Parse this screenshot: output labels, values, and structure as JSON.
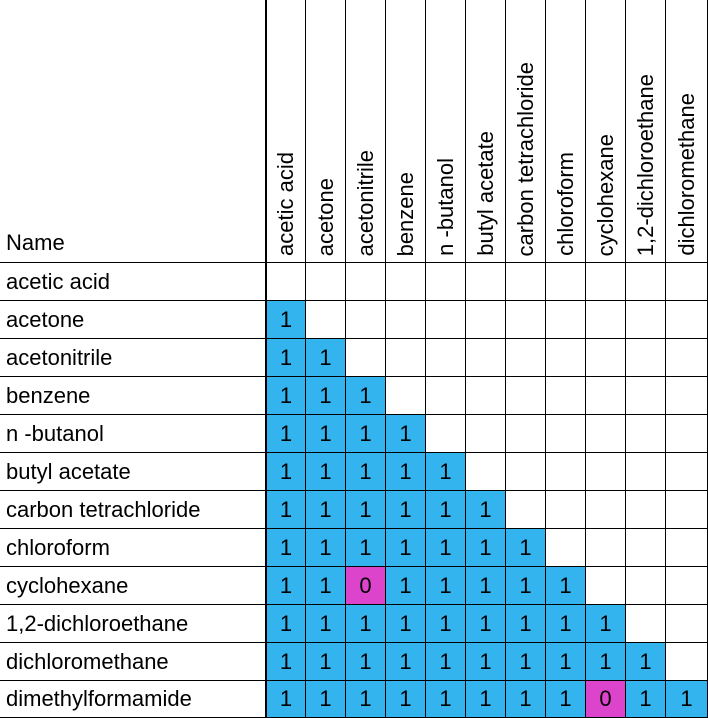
{
  "name_header": "Name",
  "columns": [
    "acetic acid",
    "acetone",
    "acetonitrile",
    "benzene",
    "n -butanol",
    "butyl acetate",
    "carbon tetrachloride",
    "chloroform",
    "cyclohexane",
    "1,2-dichloroethane",
    "dichloromethane"
  ],
  "rows": [
    {
      "name": "acetic acid",
      "values": []
    },
    {
      "name": "acetone",
      "values": [
        "1"
      ]
    },
    {
      "name": "acetonitrile",
      "values": [
        "1",
        "1"
      ]
    },
    {
      "name": "benzene",
      "values": [
        "1",
        "1",
        "1"
      ]
    },
    {
      "name": "n -butanol",
      "values": [
        "1",
        "1",
        "1",
        "1"
      ]
    },
    {
      "name": "butyl acetate",
      "values": [
        "1",
        "1",
        "1",
        "1",
        "1"
      ]
    },
    {
      "name": "carbon tetrachloride",
      "values": [
        "1",
        "1",
        "1",
        "1",
        "1",
        "1"
      ]
    },
    {
      "name": "chloroform",
      "values": [
        "1",
        "1",
        "1",
        "1",
        "1",
        "1",
        "1"
      ]
    },
    {
      "name": "cyclohexane",
      "values": [
        "1",
        "1",
        "0",
        "1",
        "1",
        "1",
        "1",
        "1"
      ]
    },
    {
      "name": "1,2-dichloroethane",
      "values": [
        "1",
        "1",
        "1",
        "1",
        "1",
        "1",
        "1",
        "1",
        "1"
      ]
    },
    {
      "name": "dichloromethane",
      "values": [
        "1",
        "1",
        "1",
        "1",
        "1",
        "1",
        "1",
        "1",
        "1",
        "1"
      ]
    },
    {
      "name": "dimethylformamide",
      "values": [
        "1",
        "1",
        "1",
        "1",
        "1",
        "1",
        "1",
        "1",
        "0",
        "1",
        "1"
      ]
    }
  ],
  "colors": {
    "one_fill": "#33b4ee",
    "zero_fill": "#dd44cc",
    "grid": "#000000"
  }
}
